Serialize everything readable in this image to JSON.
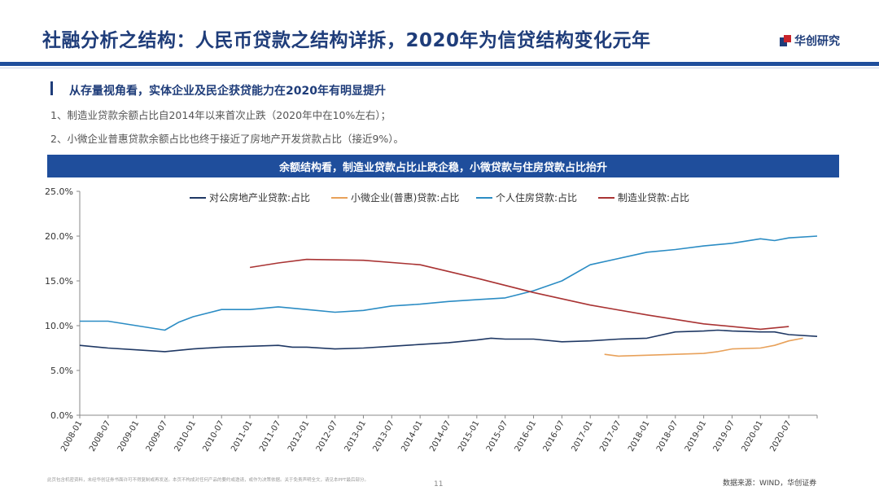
{
  "header": {
    "title": "社融分析之结构：人民币贷款之结构详拆，2020年为信贷结构变化元年",
    "brand": "华创研究"
  },
  "section": {
    "heading": "从存量视角看，实体企业及民企获贷能力在2020年有明显提升",
    "bullets": [
      "1、制造业贷款余额占比自2014年以来首次止跌（2020年中在10%左右）；",
      "2、小微企业普惠贷款余额占比也终于接近了房地产开发贷款占比（接近9%）。"
    ]
  },
  "banner": "余额结构看，制造业贷款占比止跌企稳，小微贷款与住房贷款占比抬升",
  "footer": {
    "disclaimer": "此页包含机密资料，未经华创证券书面许可不得复制或再发送。本页不构成对任何产品的要约或邀请，或作为决策依据。关于免责声明全文，请见本PPT最后部分。",
    "page_number": "11",
    "source": "数据来源：WIND，华创证券"
  },
  "chart_data": {
    "type": "line",
    "x_tick_labels": [
      "2008-01",
      "2008-07",
      "2009-01",
      "2009-07",
      "2010-01",
      "2010-07",
      "2011-01",
      "2011-07",
      "2012-01",
      "2012-07",
      "2013-01",
      "2013-07",
      "2014-01",
      "2014-07",
      "2015-01",
      "2015-07",
      "2016-01",
      "2016-07",
      "2017-01",
      "2017-07",
      "2018-01",
      "2018-07",
      "2019-01",
      "2019-07",
      "2020-01",
      "2020-07"
    ],
    "y_tick_labels": [
      "0.0%",
      "5.0%",
      "10.0%",
      "15.0%",
      "20.0%",
      "25.0%"
    ],
    "ylim": [
      0,
      25
    ],
    "legend_position": "top",
    "series": [
      {
        "name": "对公房地产业贷款:占比",
        "color": "#1f3864",
        "points": [
          [
            "2008-01",
            7.8
          ],
          [
            "2008-07",
            7.5
          ],
          [
            "2009-01",
            7.3
          ],
          [
            "2009-07",
            7.1
          ],
          [
            "2010-01",
            7.4
          ],
          [
            "2010-07",
            7.6
          ],
          [
            "2011-01",
            7.7
          ],
          [
            "2011-07",
            7.8
          ],
          [
            "2011-10",
            7.6
          ],
          [
            "2012-01",
            7.6
          ],
          [
            "2012-07",
            7.4
          ],
          [
            "2013-01",
            7.5
          ],
          [
            "2013-07",
            7.7
          ],
          [
            "2014-01",
            7.9
          ],
          [
            "2014-07",
            8.1
          ],
          [
            "2015-01",
            8.4
          ],
          [
            "2015-04",
            8.6
          ],
          [
            "2015-07",
            8.5
          ],
          [
            "2016-01",
            8.5
          ],
          [
            "2016-07",
            8.2
          ],
          [
            "2017-01",
            8.3
          ],
          [
            "2017-07",
            8.5
          ],
          [
            "2018-01",
            8.6
          ],
          [
            "2018-07",
            9.3
          ],
          [
            "2019-01",
            9.4
          ],
          [
            "2019-04",
            9.5
          ],
          [
            "2019-07",
            9.4
          ],
          [
            "2020-01",
            9.3
          ],
          [
            "2020-04",
            9.3
          ],
          [
            "2020-07",
            9.0
          ],
          [
            "2021-01",
            8.8
          ]
        ]
      },
      {
        "name": "小微企业(普惠)贷款:占比",
        "color": "#e8a15a",
        "points": [
          [
            "2017-04",
            6.8
          ],
          [
            "2017-07",
            6.6
          ],
          [
            "2018-01",
            6.7
          ],
          [
            "2018-07",
            6.8
          ],
          [
            "2019-01",
            6.9
          ],
          [
            "2019-04",
            7.1
          ],
          [
            "2019-07",
            7.4
          ],
          [
            "2020-01",
            7.5
          ],
          [
            "2020-04",
            7.8
          ],
          [
            "2020-07",
            8.3
          ],
          [
            "2020-10",
            8.6
          ]
        ]
      },
      {
        "name": "个人住房贷款:占比",
        "color": "#2b8cc4",
        "points": [
          [
            "2008-01",
            10.5
          ],
          [
            "2008-07",
            10.5
          ],
          [
            "2009-01",
            10.0
          ],
          [
            "2009-07",
            9.5
          ],
          [
            "2009-10",
            10.4
          ],
          [
            "2010-01",
            11.0
          ],
          [
            "2010-07",
            11.8
          ],
          [
            "2011-01",
            11.8
          ],
          [
            "2011-07",
            12.1
          ],
          [
            "2012-01",
            11.8
          ],
          [
            "2012-07",
            11.5
          ],
          [
            "2013-01",
            11.7
          ],
          [
            "2013-07",
            12.2
          ],
          [
            "2014-01",
            12.4
          ],
          [
            "2014-07",
            12.7
          ],
          [
            "2015-01",
            12.9
          ],
          [
            "2015-07",
            13.1
          ],
          [
            "2016-01",
            13.9
          ],
          [
            "2016-07",
            15.0
          ],
          [
            "2017-01",
            16.8
          ],
          [
            "2017-07",
            17.5
          ],
          [
            "2018-01",
            18.2
          ],
          [
            "2018-07",
            18.5
          ],
          [
            "2019-01",
            18.9
          ],
          [
            "2019-07",
            19.2
          ],
          [
            "2020-01",
            19.7
          ],
          [
            "2020-04",
            19.5
          ],
          [
            "2020-07",
            19.8
          ],
          [
            "2021-01",
            20.0
          ]
        ]
      },
      {
        "name": "制造业贷款:占比",
        "color": "#a93333",
        "points": [
          [
            "2011-01",
            16.5
          ],
          [
            "2011-07",
            17.0
          ],
          [
            "2012-01",
            17.4
          ],
          [
            "2013-01",
            17.3
          ],
          [
            "2014-01",
            16.8
          ],
          [
            "2015-01",
            15.3
          ],
          [
            "2016-01",
            13.7
          ],
          [
            "2017-01",
            12.3
          ],
          [
            "2018-01",
            11.2
          ],
          [
            "2019-01",
            10.2
          ],
          [
            "2020-01",
            9.6
          ],
          [
            "2020-07",
            9.9
          ]
        ]
      }
    ]
  }
}
